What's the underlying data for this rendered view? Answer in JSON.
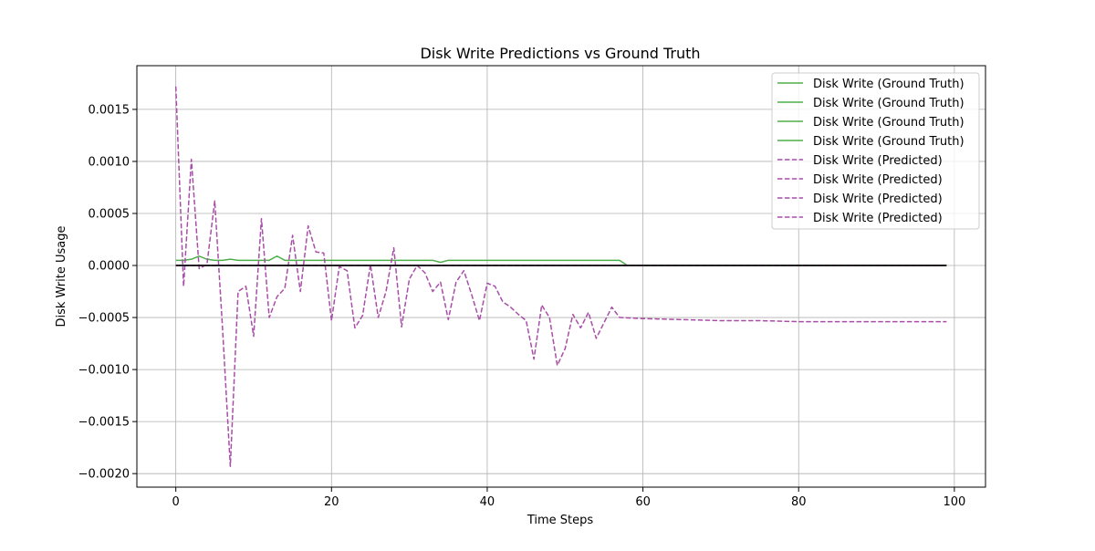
{
  "chart_data": {
    "type": "line",
    "title": "Disk Write Predictions vs Ground Truth",
    "xlabel": "Time Steps",
    "ylabel": "Disk Write Usage",
    "xlim": [
      -5,
      104
    ],
    "ylim": [
      -0.00213,
      0.00192
    ],
    "xticks": [
      0,
      20,
      40,
      60,
      80,
      100
    ],
    "xtick_labels": [
      "0",
      "20",
      "40",
      "60",
      "80",
      "100"
    ],
    "yticks": [
      -0.002,
      -0.0015,
      -0.001,
      -0.0005,
      0,
      0.0005,
      0.001,
      0.0015
    ],
    "ytick_labels": [
      "−0.0020",
      "−0.0015",
      "−0.0010",
      "−0.0005",
      "0.0000",
      "0.0005",
      "0.0010",
      "0.0015"
    ],
    "grid": true,
    "legend_position": "top-right",
    "legend": [
      {
        "label": "Disk Write (Ground Truth)",
        "color": "#4daf4a",
        "style": "solid"
      },
      {
        "label": "Disk Write (Ground Truth)",
        "color": "#4daf4a",
        "style": "solid"
      },
      {
        "label": "Disk Write (Ground Truth)",
        "color": "#4daf4a",
        "style": "solid"
      },
      {
        "label": "Disk Write (Ground Truth)",
        "color": "#4daf4a",
        "style": "solid"
      },
      {
        "label": "Disk Write (Predicted)",
        "color": "#a84ea8",
        "style": "dashed"
      },
      {
        "label": "Disk Write (Predicted)",
        "color": "#a84ea8",
        "style": "dashed"
      },
      {
        "label": "Disk Write (Predicted)",
        "color": "#a84ea8",
        "style": "dashed"
      },
      {
        "label": "Disk Write (Predicted)",
        "color": "#a84ea8",
        "style": "dashed"
      }
    ],
    "series": [
      {
        "name": "Disk Write (Ground Truth)",
        "color": "#4daf4a",
        "style": "solid",
        "points": [
          [
            0,
            5e-05
          ],
          [
            1,
            5e-05
          ],
          [
            2,
            6e-05
          ],
          [
            3,
            9e-05
          ],
          [
            4,
            6e-05
          ],
          [
            5,
            5e-05
          ],
          [
            6,
            5e-05
          ],
          [
            7,
            6e-05
          ],
          [
            8,
            5e-05
          ],
          [
            9,
            5e-05
          ],
          [
            10,
            5e-05
          ],
          [
            11,
            5e-05
          ],
          [
            12,
            5e-05
          ],
          [
            13,
            9e-05
          ],
          [
            14,
            5e-05
          ],
          [
            15,
            5e-05
          ],
          [
            16,
            5e-05
          ],
          [
            17,
            5e-05
          ],
          [
            18,
            5e-05
          ],
          [
            19,
            5e-05
          ],
          [
            20,
            5e-05
          ],
          [
            25,
            5e-05
          ],
          [
            30,
            5e-05
          ],
          [
            33,
            5e-05
          ],
          [
            34,
            3e-05
          ],
          [
            35,
            5e-05
          ],
          [
            40,
            5e-05
          ],
          [
            45,
            5e-05
          ],
          [
            50,
            5e-05
          ],
          [
            55,
            5e-05
          ],
          [
            57,
            5e-05
          ],
          [
            58,
            0.0
          ],
          [
            60,
            0.0
          ],
          [
            70,
            0.0
          ],
          [
            80,
            0.0
          ],
          [
            90,
            0.0
          ],
          [
            99,
            0.0
          ]
        ]
      },
      {
        "name": "Disk Write (Ground Truth)",
        "color": "#4daf4a",
        "style": "solid",
        "points": [
          [
            0,
            0.0
          ],
          [
            99,
            0.0
          ]
        ]
      },
      {
        "name": "Disk Write (Ground Truth)",
        "color": "#4daf4a",
        "style": "solid",
        "points": [
          [
            0,
            0.0
          ],
          [
            99,
            0.0
          ]
        ]
      },
      {
        "name": "Disk Write (Ground Truth)",
        "color": "#4daf4a",
        "style": "solid",
        "points": [
          [
            0,
            0.0
          ],
          [
            99,
            0.0
          ]
        ]
      },
      {
        "name": "Disk Write (Predicted)",
        "color": "#a84ea8",
        "style": "dashed",
        "points": [
          [
            0,
            0.00172
          ],
          [
            1,
            -0.0002
          ],
          [
            2,
            0.00102
          ],
          [
            3,
            -3e-05
          ],
          [
            4,
            1e-05
          ],
          [
            5,
            0.00062
          ],
          [
            6,
            -0.0006
          ],
          [
            7,
            -0.00193
          ],
          [
            8,
            -0.00025
          ],
          [
            9,
            -0.0002
          ],
          [
            10,
            -0.00068
          ],
          [
            11,
            0.00045
          ],
          [
            12,
            -0.0005
          ],
          [
            13,
            -0.0003
          ],
          [
            14,
            -0.00022
          ],
          [
            15,
            0.00029
          ],
          [
            16,
            -0.00025
          ],
          [
            17,
            0.00038
          ],
          [
            18,
            0.00013
          ],
          [
            19,
            0.00012
          ],
          [
            20,
            -0.00053
          ],
          [
            21,
            -1e-05
          ],
          [
            22,
            -5e-05
          ],
          [
            23,
            -0.0006
          ],
          [
            24,
            -0.00048
          ],
          [
            25,
            1e-05
          ],
          [
            26,
            -0.0005
          ],
          [
            27,
            -0.00025
          ],
          [
            28,
            0.00017
          ],
          [
            29,
            -0.00059
          ],
          [
            30,
            -0.00013
          ],
          [
            31,
            0.0
          ],
          [
            32,
            -7e-05
          ],
          [
            33,
            -0.00025
          ],
          [
            34,
            -0.00016
          ],
          [
            35,
            -0.00052
          ],
          [
            36,
            -0.00016
          ],
          [
            37,
            -5e-05
          ],
          [
            38,
            -0.00028
          ],
          [
            39,
            -0.00053
          ],
          [
            40,
            -0.00017
          ],
          [
            41,
            -0.0002
          ],
          [
            42,
            -0.00035
          ],
          [
            43,
            -0.0004
          ],
          [
            44,
            -0.00047
          ],
          [
            45,
            -0.00053
          ],
          [
            46,
            -0.0009
          ],
          [
            47,
            -0.00038
          ],
          [
            48,
            -0.0005
          ],
          [
            49,
            -0.00096
          ],
          [
            50,
            -0.0008
          ],
          [
            51,
            -0.00047
          ],
          [
            52,
            -0.0006
          ],
          [
            53,
            -0.00045
          ],
          [
            54,
            -0.0007
          ],
          [
            55,
            -0.00055
          ],
          [
            56,
            -0.0004
          ],
          [
            57,
            -0.0005
          ],
          [
            60,
            -0.00051
          ],
          [
            65,
            -0.00052
          ],
          [
            70,
            -0.00053
          ],
          [
            75,
            -0.00053
          ],
          [
            80,
            -0.00054
          ],
          [
            85,
            -0.00054
          ],
          [
            90,
            -0.00054
          ],
          [
            95,
            -0.00054
          ],
          [
            99,
            -0.00054
          ]
        ]
      },
      {
        "name": "Disk Write (Predicted)",
        "color": "#a84ea8",
        "style": "dashed",
        "points": [
          [
            0,
            0.0
          ],
          [
            99,
            0.0
          ]
        ]
      },
      {
        "name": "Disk Write (Predicted)",
        "color": "#a84ea8",
        "style": "dashed",
        "points": [
          [
            0,
            0.0
          ],
          [
            99,
            0.0
          ]
        ]
      },
      {
        "name": "Disk Write (Predicted)",
        "color": "#a84ea8",
        "style": "dashed",
        "points": [
          [
            0,
            0.0
          ],
          [
            99,
            0.0
          ]
        ]
      }
    ],
    "overlay_line": {
      "color": "#000000",
      "points": [
        [
          0,
          0.0
        ],
        [
          99,
          0.0
        ]
      ]
    }
  }
}
